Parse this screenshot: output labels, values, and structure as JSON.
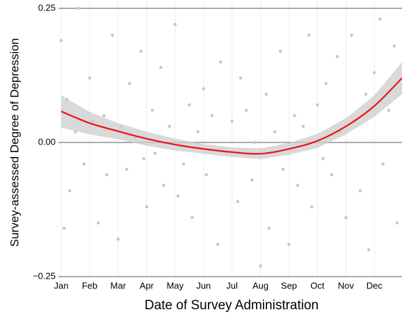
{
  "chart_data": {
    "type": "scatter",
    "x_label": "Date of Survey Administration",
    "y_label": "Survey-assessed Degree of Depression",
    "xlim": [
      1,
      12.97
    ],
    "ylim": [
      -0.25,
      0.25
    ],
    "xticks": [
      {
        "value": 1,
        "label": "Jan"
      },
      {
        "value": 2,
        "label": "Feb"
      },
      {
        "value": 3,
        "label": "Mar"
      },
      {
        "value": 4,
        "label": "Apr"
      },
      {
        "value": 5,
        "label": "May"
      },
      {
        "value": 6,
        "label": "Jun"
      },
      {
        "value": 7,
        "label": "Jul"
      },
      {
        "value": 8,
        "label": "Aug"
      },
      {
        "value": 9,
        "label": "Sep"
      },
      {
        "value": 10,
        "label": "Oct"
      },
      {
        "value": 11,
        "label": "Nov"
      },
      {
        "value": 12,
        "label": "Dec"
      }
    ],
    "yticks": [
      {
        "value": 0.25,
        "label": "0.25"
      },
      {
        "value": 0,
        "label": "0.00"
      },
      {
        "value": -0.25,
        "label": "−0.25"
      }
    ],
    "grid": true,
    "points": {
      "color": "#c8c8c8",
      "x": [
        1.0,
        1.1,
        1.2,
        1.3,
        1.5,
        1.6,
        1.8,
        2.0,
        2.1,
        2.3,
        2.5,
        2.6,
        2.8,
        3.0,
        3.1,
        3.3,
        3.4,
        3.6,
        3.8,
        3.9,
        4.0,
        4.2,
        4.3,
        4.5,
        4.6,
        4.8,
        5.0,
        5.1,
        5.3,
        5.5,
        5.6,
        5.8,
        6.0,
        6.1,
        6.3,
        6.5,
        6.6,
        6.8,
        7.0,
        7.2,
        7.3,
        7.5,
        7.7,
        7.8,
        8.0,
        8.2,
        8.3,
        8.5,
        8.7,
        8.8,
        9.0,
        9.2,
        9.3,
        9.5,
        9.7,
        9.8,
        10.0,
        10.2,
        10.3,
        10.5,
        10.7,
        10.8,
        11.0,
        11.2,
        11.3,
        11.5,
        11.7,
        11.8,
        12.0,
        12.2,
        12.3,
        12.5,
        12.7,
        12.8
      ],
      "y": [
        0.19,
        -0.16,
        0.08,
        -0.09,
        0.02,
        0.25,
        -0.04,
        0.12,
        0.04,
        -0.15,
        0.05,
        -0.06,
        0.2,
        -0.18,
        0.03,
        -0.05,
        0.11,
        0.01,
        0.17,
        -0.03,
        -0.12,
        0.06,
        -0.02,
        0.14,
        -0.08,
        0.03,
        0.22,
        -0.1,
        -0.04,
        0.07,
        -0.14,
        0.02,
        0.1,
        -0.06,
        0.05,
        -0.19,
        0.15,
        -0.02,
        0.04,
        -0.11,
        0.12,
        0.06,
        -0.07,
        0.0,
        -0.23,
        0.09,
        -0.16,
        0.02,
        0.17,
        -0.05,
        -0.19,
        0.05,
        -0.08,
        0.03,
        0.2,
        -0.12,
        0.07,
        -0.03,
        0.11,
        -0.06,
        0.16,
        0.02,
        -0.14,
        0.2,
        0.04,
        -0.09,
        0.09,
        -0.2,
        0.13,
        0.23,
        -0.04,
        0.06,
        0.18,
        -0.15
      ]
    },
    "smooth": {
      "color": "#ee1111",
      "band_color": "#cccccc",
      "x": [
        1,
        2,
        3,
        4,
        5,
        6,
        7,
        8,
        9,
        10,
        11,
        12,
        12.97
      ],
      "y": [
        0.058,
        0.036,
        0.021,
        0.007,
        -0.004,
        -0.012,
        -0.018,
        -0.021,
        -0.012,
        0.003,
        0.03,
        0.068,
        0.12
      ],
      "upper": [
        0.088,
        0.057,
        0.036,
        0.02,
        0.007,
        -0.003,
        -0.009,
        -0.011,
        -0.001,
        0.016,
        0.045,
        0.088,
        0.15
      ],
      "lower": [
        0.028,
        0.015,
        0.006,
        -0.006,
        -0.015,
        -0.021,
        -0.027,
        -0.031,
        -0.023,
        -0.01,
        0.015,
        0.048,
        0.09
      ]
    }
  }
}
